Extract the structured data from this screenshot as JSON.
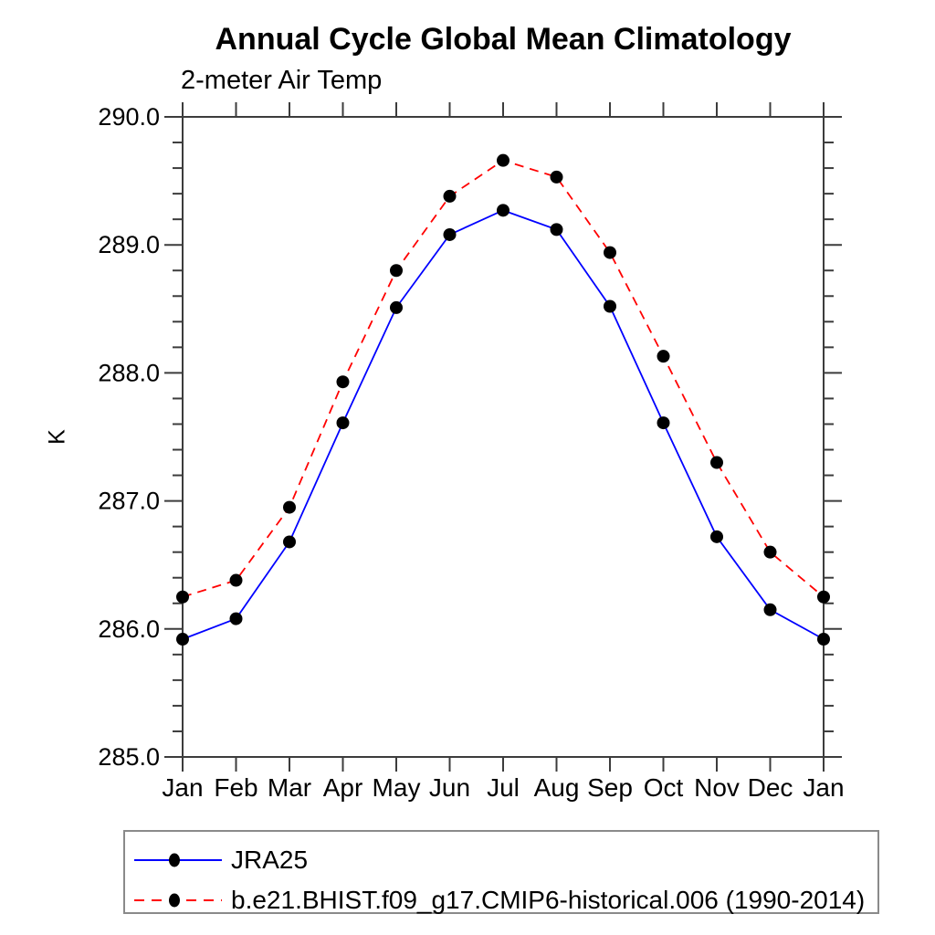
{
  "title": "Annual Cycle Global Mean Climatology",
  "subtitle": "2-meter Air Temp",
  "chart_data": {
    "type": "line",
    "title": "Annual Cycle Global Mean Climatology",
    "subtitle": "2-meter Air Temp",
    "ylabel": "K",
    "xlabel": "",
    "categories": [
      "Jan",
      "Feb",
      "Mar",
      "Apr",
      "May",
      "Jun",
      "Jul",
      "Aug",
      "Sep",
      "Oct",
      "Nov",
      "Dec",
      "Jan"
    ],
    "series": [
      {
        "name": "JRA25",
        "color": "#0000ff",
        "line_style": "solid",
        "marker": "filled-black-circle",
        "values": [
          285.92,
          286.08,
          286.68,
          287.61,
          288.51,
          289.08,
          289.27,
          289.12,
          288.52,
          287.61,
          286.72,
          286.15,
          285.92
        ]
      },
      {
        "name": "b.e21.BHIST.f09_g17.CMIP6-historical.006 (1990-2014)",
        "color": "#ff0000",
        "line_style": "dashed",
        "marker": "filled-black-circle",
        "values": [
          286.25,
          286.38,
          286.95,
          287.93,
          288.8,
          289.38,
          289.66,
          289.53,
          288.94,
          288.13,
          287.3,
          286.6,
          286.25
        ]
      }
    ],
    "ylim": [
      285.0,
      290.0
    ],
    "y_major_step": 1.0,
    "y_minor_step": 0.2,
    "y_tick_labels": [
      "285.0",
      "286.0",
      "287.0",
      "288.0",
      "289.0",
      "290.0"
    ],
    "grid": false,
    "legend_position": "bottom",
    "axis_color": "#3c3c3c",
    "marker_color": "#000000"
  }
}
